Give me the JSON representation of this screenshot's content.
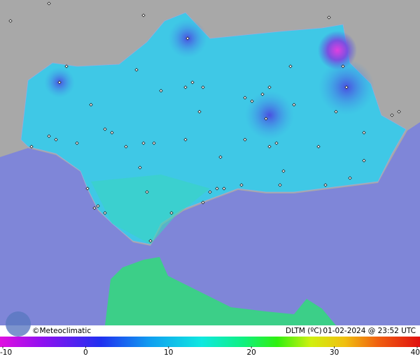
{
  "map": {
    "credit": "©Meteoclimatic",
    "variable": "DLTM (ºC)",
    "timestamp": "01-02-2024 @ 23:52 UTC",
    "colorbar": {
      "range": [
        -10,
        40
      ],
      "ticks": [
        -10,
        0,
        10,
        20,
        30,
        40
      ]
    }
  }
}
